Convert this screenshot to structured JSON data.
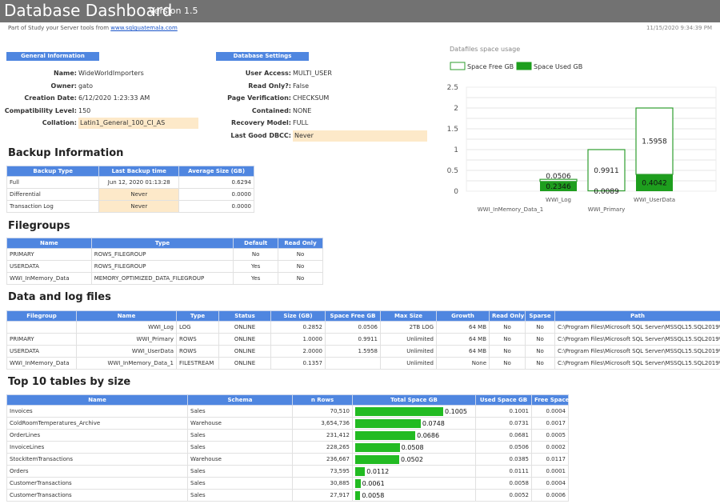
{
  "header": {
    "title": "Database Dashboard",
    "version": "Version 1.5",
    "subtitle": "Part of Study your Server tools from",
    "link": "www.sqlguatemala.com",
    "timestamp": "11/15/2020 9:34:39 PM"
  },
  "general": {
    "title": "General Information",
    "rows": [
      {
        "k": "Name:",
        "v": "WideWorldImporters"
      },
      {
        "k": "Owner:",
        "v": "gato"
      },
      {
        "k": "Creation Date:",
        "v": "6/12/2020 1:23:33 AM"
      },
      {
        "k": "Compatibility Level:",
        "v": "150"
      },
      {
        "k": "Collation:",
        "v": "Latin1_General_100_CI_AS"
      }
    ]
  },
  "settings": {
    "title": "Database Settings",
    "rows": [
      {
        "k": "User Access:",
        "v": "MULTI_USER"
      },
      {
        "k": "Read Only?:",
        "v": "False"
      },
      {
        "k": "Page Verification:",
        "v": "CHECKSUM"
      },
      {
        "k": "Contained:",
        "v": "NONE"
      },
      {
        "k": "Recovery Model:",
        "v": "FULL"
      },
      {
        "k": "Last Good DBCC:",
        "v": "Never"
      }
    ]
  },
  "backup": {
    "title": "Backup Information",
    "headers": [
      "Backup Type",
      "Last Backup time",
      "Average Size (GB)"
    ],
    "rows": [
      [
        "Full",
        "Jun 12, 2020 01:13:28",
        "0.6294"
      ],
      [
        "Differential",
        "Never",
        "0.0000"
      ],
      [
        "Transaction Log",
        "Never",
        "0.0000"
      ]
    ]
  },
  "filegroups": {
    "title": "Filegroups",
    "headers": [
      "Name",
      "Type",
      "Default",
      "Read Only"
    ],
    "rows": [
      [
        "PRIMARY",
        "ROWS_FILEGROUP",
        "No",
        "No"
      ],
      [
        "USERDATA",
        "ROWS_FILEGROUP",
        "Yes",
        "No"
      ],
      [
        "WWI_InMemory_Data",
        "MEMORY_OPTIMIZED_DATA_FILEGROUP",
        "Yes",
        "No"
      ]
    ]
  },
  "files": {
    "title": "Data and log files",
    "headers": [
      "Filegroup",
      "Name",
      "Type",
      "Status",
      "Size (GB)",
      "Space Free GB",
      "Max Size",
      "Growth",
      "Read Only",
      "Sparse",
      "Path"
    ],
    "rows": [
      [
        "",
        "WWI_Log",
        "LOG",
        "ONLINE",
        "0.2852",
        "0.0506",
        "2TB LOG",
        "64 MB",
        "No",
        "No",
        "C:\\Program Files\\Microsoft SQL Server\\MSSQL15.SQL2019\\MSSQ"
      ],
      [
        "PRIMARY",
        "WWI_Primary",
        "ROWS",
        "ONLINE",
        "1.0000",
        "0.9911",
        "Unlimited",
        "64 MB",
        "No",
        "No",
        "C:\\Program Files\\Microsoft SQL Server\\MSSQL15.SQL2019\\MSSQ"
      ],
      [
        "USERDATA",
        "WWI_UserData",
        "ROWS",
        "ONLINE",
        "2.0000",
        "1.5958",
        "Unlimited",
        "64 MB",
        "No",
        "No",
        "C:\\Program Files\\Microsoft SQL Server\\MSSQL15.SQL2019\\MSSQ"
      ],
      [
        "WWI_InMemory_Data",
        "WWI_InMemory_Data_1",
        "FILESTREAM",
        "ONLINE",
        "0.1357",
        "",
        "Unlimited",
        "None",
        "No",
        "No",
        "C:\\Program Files\\Microsoft SQL Server\\MSSQL15.SQL2019\\MSSQ"
      ]
    ]
  },
  "tables": {
    "title": "Top 10 tables by size",
    "headers": [
      "Name",
      "Schema",
      "n Rows",
      "Total Space GB",
      "Used Space GB",
      "Free Space GB"
    ],
    "rows": [
      {
        "name": "Invoices",
        "schema": "Sales",
        "rows": "70,510",
        "total": "0.1005",
        "total_value": 0.1005,
        "used": "0.1001",
        "free": "0.0004"
      },
      {
        "name": "ColdRoomTemperatures_Archive",
        "schema": "Warehouse",
        "rows": "3,654,736",
        "total": "0.0748",
        "total_value": 0.0748,
        "used": "0.0731",
        "free": "0.0017"
      },
      {
        "name": "OrderLines",
        "schema": "Sales",
        "rows": "231,412",
        "total": "0.0686",
        "total_value": 0.0686,
        "used": "0.0681",
        "free": "0.0005"
      },
      {
        "name": "InvoiceLines",
        "schema": "Sales",
        "rows": "228,265",
        "total": "0.0508",
        "total_value": 0.0508,
        "used": "0.0506",
        "free": "0.0002"
      },
      {
        "name": "StockItemTransactions",
        "schema": "Warehouse",
        "rows": "236,667",
        "total": "0.0502",
        "total_value": 0.0502,
        "used": "0.0385",
        "free": "0.0117"
      },
      {
        "name": "Orders",
        "schema": "Sales",
        "rows": "73,595",
        "total": "0.0112",
        "total_value": 0.0112,
        "used": "0.0111",
        "free": "0.0001"
      },
      {
        "name": "CustomerTransactions",
        "schema": "Sales",
        "rows": "30,885",
        "total": "0.0061",
        "total_value": 0.0061,
        "used": "0.0058",
        "free": "0.0004"
      },
      {
        "name": "CustomerTransactions",
        "schema": "Sales",
        "rows": "27,917",
        "total": "0.0058",
        "total_value": 0.0058,
        "used": "0.0052",
        "free": "0.0006"
      }
    ]
  },
  "chart_data": {
    "type": "bar",
    "title": "Datafiles space usage",
    "categories": [
      "WWI_InMemory_Data_1",
      "WWI_Log",
      "WWI_Primary",
      "WWI_UserData"
    ],
    "series": [
      {
        "name": "Space Free GB",
        "values": [
          0,
          0.0506,
          0.9911,
          1.5958
        ],
        "labels": [
          "",
          "0.0506",
          "0.9911",
          "1.5958"
        ],
        "color": "#ffffff",
        "stroke": "#2e9e2e"
      },
      {
        "name": "Space Used GB",
        "values": [
          0,
          0.2346,
          0.0089,
          0.4042
        ],
        "labels": [
          "",
          "0.2346",
          "0.0089",
          "0.4042"
        ],
        "color": "#1e9e1e"
      }
    ],
    "yticks": [
      "0",
      "0.5",
      "1",
      "1.5",
      "2",
      "2.5"
    ],
    "ylim": [
      0,
      2.5
    ],
    "legend": "top-left",
    "grid": true,
    "stacked": true
  }
}
